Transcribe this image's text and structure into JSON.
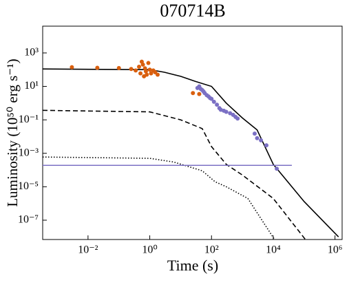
{
  "chart_data": {
    "type": "scatter",
    "title": "070714B",
    "x_label": "Time (s)",
    "y_label": "Luminosity (10⁵⁰ erg s⁻¹)",
    "log_x": true,
    "log_y": true,
    "xlim": [
      0.00034,
      1700000
    ],
    "ylim": [
      7e-09,
      40000
    ],
    "xticks": [
      {
        "value": 0.01,
        "label": "10⁻²"
      },
      {
        "value": 1,
        "label": "10⁰"
      },
      {
        "value": 100,
        "label": "10²"
      },
      {
        "value": 10000,
        "label": "10⁴"
      },
      {
        "value": 1000000,
        "label": "10⁶"
      }
    ],
    "yticks": [
      {
        "value": 1000,
        "label": "10³"
      },
      {
        "value": 10,
        "label": "10¹"
      },
      {
        "value": 0.1,
        "label": "10⁻¹"
      },
      {
        "value": 0.001,
        "label": "10⁻³"
      },
      {
        "value": 1e-05,
        "label": "10⁻⁵"
      },
      {
        "value": 1e-07,
        "label": "10⁻⁷"
      }
    ],
    "series": [
      {
        "color": "#d95f0e",
        "x": [
          0.003,
          0.02,
          0.1,
          0.25,
          0.35,
          0.45,
          0.5,
          0.55,
          0.6,
          0.65,
          0.7,
          0.75,
          0.8,
          0.9,
          1.0,
          1.1,
          1.3,
          1.5,
          1.8,
          25,
          40
        ],
        "values": [
          140,
          130,
          125,
          110,
          90,
          150,
          60,
          300,
          200,
          40,
          120,
          80,
          50,
          250,
          100,
          60,
          90,
          70,
          50,
          4,
          3.5
        ]
      },
      {
        "color": "#7b70c4",
        "x": [
          35,
          40,
          45,
          50,
          55,
          60,
          70,
          80,
          90,
          100,
          120,
          150,
          180,
          200,
          250,
          300,
          400,
          500,
          600,
          700,
          2500,
          3000,
          4000,
          6000,
          13000
        ],
        "values": [
          8,
          10,
          7,
          6,
          5,
          4,
          3,
          2.5,
          2,
          1.8,
          1.2,
          0.8,
          0.5,
          0.4,
          0.35,
          0.3,
          0.25,
          0.2,
          0.15,
          0.12,
          0.015,
          0.008,
          0.006,
          0.003,
          0.00012
        ]
      }
    ],
    "lines": [
      {
        "color": "#000000",
        "style": "solid",
        "x": [
          0.00034,
          1,
          3,
          10,
          30,
          100,
          300,
          1000,
          3000,
          10000,
          100000,
          1300000
        ],
        "values": [
          110,
          100,
          70,
          40,
          20,
          10,
          1,
          0.13,
          0.025,
          0.00022,
          1.3e-06,
          1e-08
        ]
      },
      {
        "color": "#000000",
        "style": "dashed",
        "x": [
          0.00034,
          1,
          10,
          50,
          100,
          300,
          1000,
          10000,
          110000
        ],
        "values": [
          0.37,
          0.3,
          0.1,
          0.03,
          0.0025,
          0.00022,
          5e-05,
          2e-06,
          7e-09
        ]
      },
      {
        "color": "#000000",
        "style": "dotted",
        "x": [
          0.00034,
          1,
          6,
          50,
          130,
          300,
          1500,
          11000
        ],
        "values": [
          0.0006,
          0.0005,
          0.0003,
          9e-05,
          2e-05,
          1e-05,
          2e-06,
          7e-09
        ]
      },
      {
        "color": "#7b70c4",
        "style": "solid",
        "x": [
          0.00034,
          40000
        ],
        "values": [
          0.00019,
          0.00019
        ]
      }
    ]
  }
}
